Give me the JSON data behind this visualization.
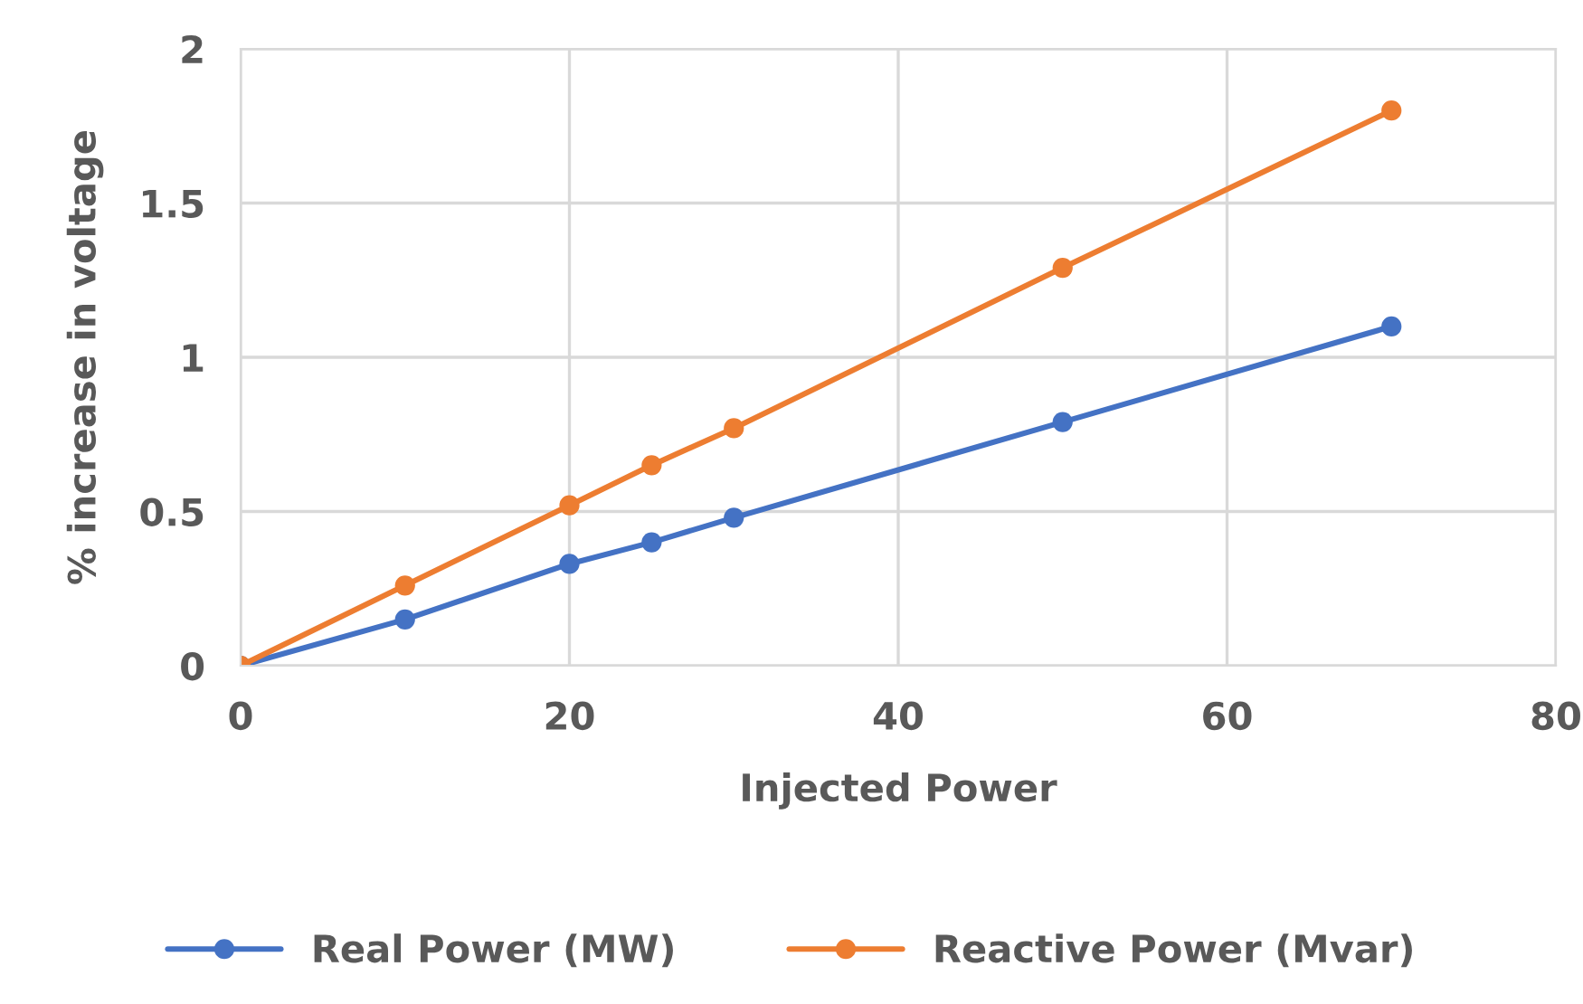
{
  "chart_data": {
    "type": "line",
    "xlabel": "Injected Power",
    "ylabel": "% increase in voltage",
    "x": [
      0,
      10,
      20,
      25,
      30,
      50,
      70
    ],
    "series": [
      {
        "name": "Real Power (MW)",
        "color": "#4472c4",
        "values": [
          0,
          0.15,
          0.33,
          0.4,
          0.48,
          0.79,
          1.1
        ]
      },
      {
        "name": "Reactive Power (Mvar)",
        "color": "#ed7d31",
        "values": [
          0,
          0.26,
          0.52,
          0.65,
          0.77,
          1.29,
          1.8
        ]
      }
    ],
    "xlim": [
      0,
      80
    ],
    "xticks": [
      0,
      20,
      40,
      60,
      80
    ],
    "ylim": [
      0,
      2
    ],
    "yticks": [
      0,
      0.5,
      1,
      1.5,
      2
    ],
    "grid": true,
    "legend": "bottom",
    "marker": "circle",
    "line_style": "solid"
  }
}
